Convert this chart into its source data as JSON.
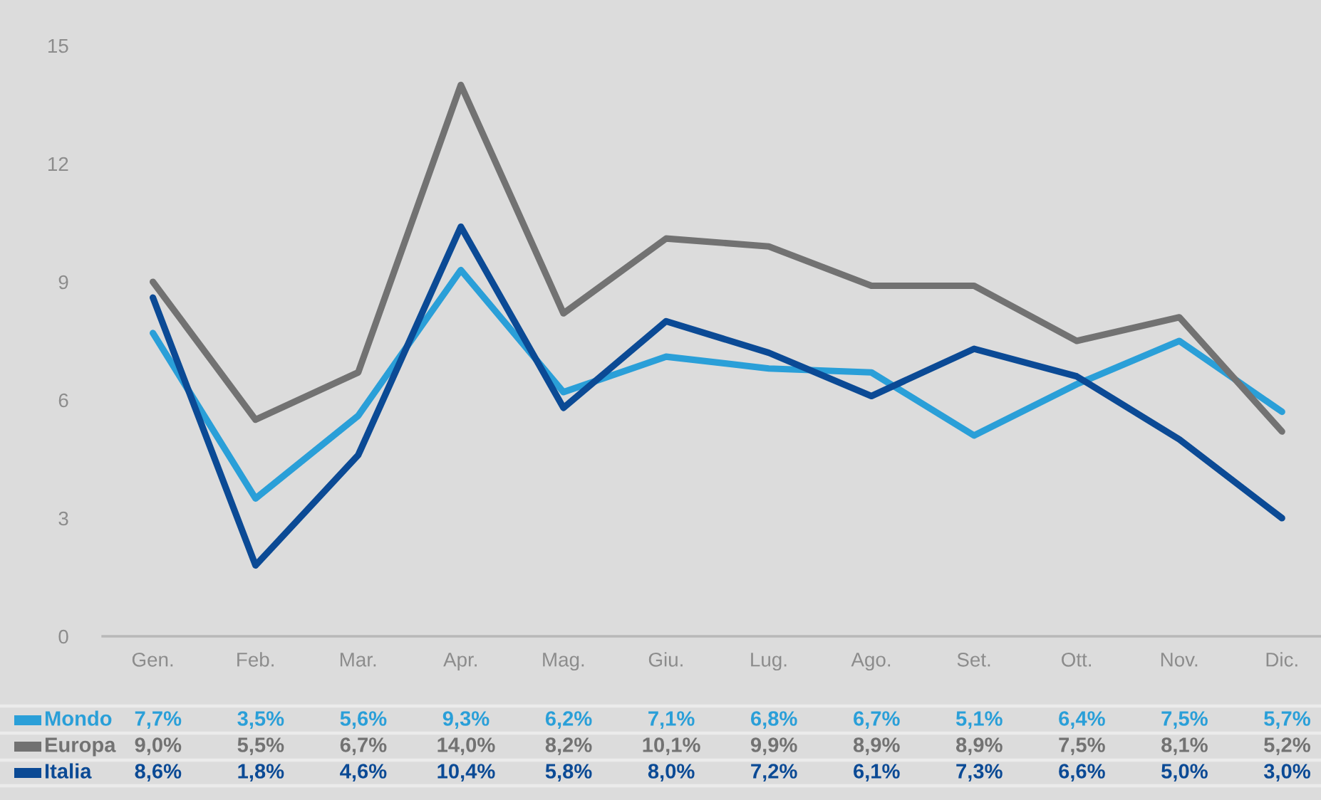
{
  "chart_data": {
    "type": "line",
    "categories": [
      "Gen.",
      "Feb.",
      "Mar.",
      "Apr.",
      "Mag.",
      "Giu.",
      "Lug.",
      "Ago.",
      "Set.",
      "Ott.",
      "Nov.",
      "Dic."
    ],
    "ylim": [
      0,
      15
    ],
    "yticks": [
      0,
      3,
      6,
      9,
      12,
      15
    ],
    "legend": "bottom",
    "series": [
      {
        "name": "Mondo",
        "color": "#2a9fd8",
        "values": [
          7.7,
          3.5,
          5.6,
          9.3,
          6.2,
          7.1,
          6.8,
          6.7,
          5.1,
          6.4,
          7.5,
          5.7
        ],
        "value_labels": [
          "7,7%",
          "3,5%",
          "5,6%",
          "9,3%",
          "6,2%",
          "7,1%",
          "6,8%",
          "6,7%",
          "5,1%",
          "6,4%",
          "7,5%",
          "5,7%"
        ]
      },
      {
        "name": "Europa",
        "color": "#727272",
        "values": [
          9.0,
          5.5,
          6.7,
          14.0,
          8.2,
          10.1,
          9.9,
          8.9,
          8.9,
          7.5,
          8.1,
          5.2
        ],
        "value_labels": [
          "9,0%",
          "5,5%",
          "6,7%",
          "14,0%",
          "8,2%",
          "10,1%",
          "9,9%",
          "8,9%",
          "8,9%",
          "7,5%",
          "8,1%",
          "5,2%"
        ]
      },
      {
        "name": "Italia",
        "color": "#0b4a95",
        "values": [
          8.6,
          1.8,
          4.6,
          10.4,
          5.8,
          8.0,
          7.2,
          6.1,
          7.3,
          6.6,
          5.0,
          3.0
        ],
        "value_labels": [
          "8,6%",
          "1,8%",
          "4,6%",
          "10,4%",
          "5,8%",
          "8,0%",
          "7,2%",
          "6,1%",
          "7,3%",
          "6,6%",
          "5,0%",
          "3,0%"
        ]
      }
    ]
  }
}
